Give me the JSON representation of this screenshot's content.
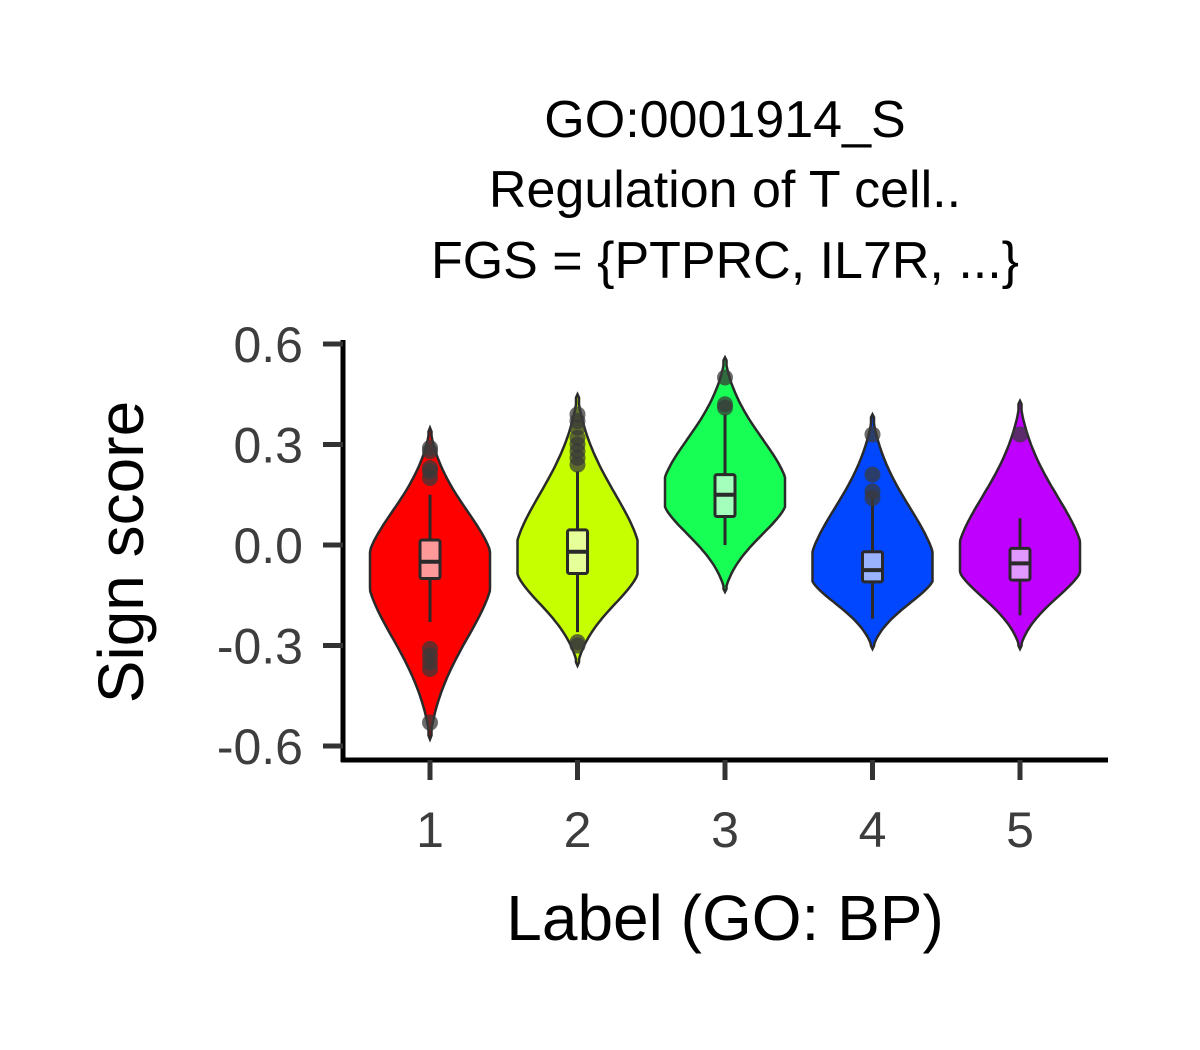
{
  "chart_data": {
    "type": "violin",
    "title_lines": [
      "GO:0001914_S",
      "Regulation of T cell..",
      "FGS = {PTPRC, IL7R, ...}"
    ],
    "xlabel": "Label (GO: BP)",
    "ylabel": "Sign score",
    "categories": [
      "1",
      "2",
      "3",
      "4",
      "5"
    ],
    "yticks": [
      "0.6",
      "0.3",
      "0.0",
      "-0.3",
      "-0.6"
    ],
    "ytick_values": [
      0.6,
      0.3,
      0.0,
      -0.3,
      -0.6
    ],
    "ylim": [
      -0.63,
      0.61
    ],
    "grid": false,
    "legend": "none",
    "series": [
      {
        "category": "1",
        "color": "#ff0000",
        "box_fill": "#ff9999",
        "min": -0.58,
        "q1": -0.1,
        "median": -0.05,
        "q3": 0.015,
        "max": 0.35,
        "whisker_low": -0.23,
        "whisker_high": 0.15,
        "mode": -0.07,
        "outliers": [
          0.29,
          0.28,
          0.23,
          0.22,
          0.2,
          -0.31,
          -0.33,
          -0.35,
          -0.37,
          -0.53
        ]
      },
      {
        "category": "2",
        "color": "#c6ff00",
        "box_fill": "#e6ff99",
        "min": -0.36,
        "q1": -0.085,
        "median": -0.02,
        "q3": 0.045,
        "max": 0.45,
        "whisker_low": -0.26,
        "whisker_high": 0.22,
        "mode": -0.05,
        "outliers": [
          0.39,
          0.37,
          0.35,
          0.32,
          0.3,
          0.28,
          0.26,
          0.24,
          -0.29,
          -0.3
        ]
      },
      {
        "category": "3",
        "color": "#17ff55",
        "box_fill": "#a3ffbb",
        "min": -0.14,
        "q1": 0.085,
        "median": 0.15,
        "q3": 0.21,
        "max": 0.56,
        "whisker_low": 0.0,
        "whisker_high": 0.39,
        "mode": 0.15,
        "outliers": [
          0.5,
          0.42,
          0.41
        ]
      },
      {
        "category": "4",
        "color": "#0047ff",
        "box_fill": "#99b3ff",
        "min": -0.31,
        "q1": -0.11,
        "median": -0.075,
        "q3": -0.02,
        "max": 0.39,
        "whisker_low": -0.22,
        "whisker_high": 0.14,
        "mode": -0.08,
        "outliers": [
          0.33,
          0.21,
          0.16,
          0.14
        ]
      },
      {
        "category": "5",
        "color": "#bf00ff",
        "box_fill": "#e099ff",
        "min": -0.31,
        "q1": -0.105,
        "median": -0.055,
        "q3": -0.01,
        "max": 0.43,
        "whisker_low": -0.21,
        "whisker_high": 0.08,
        "mode": -0.05,
        "outliers": [
          0.33
        ]
      }
    ]
  }
}
